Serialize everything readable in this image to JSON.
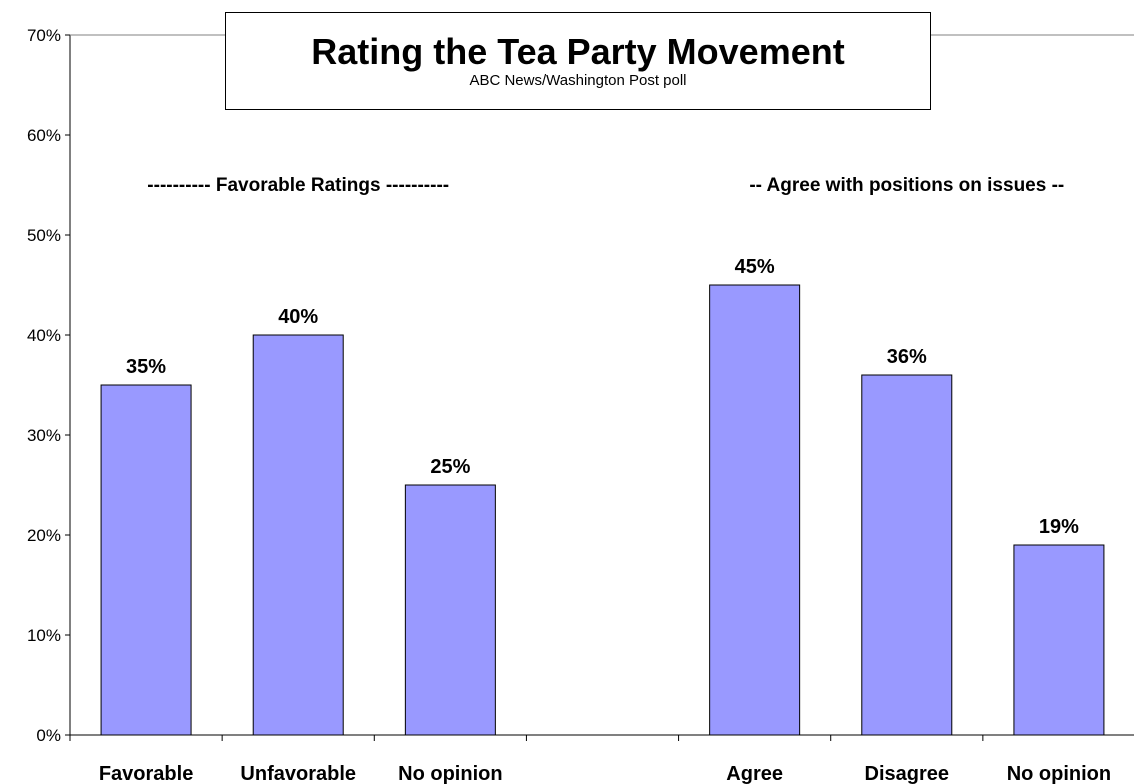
{
  "chart_data": {
    "type": "bar",
    "title": "Rating the Tea Party Movement",
    "subtitle": "ABC News/Washington Post poll",
    "categories": [
      "Favorable",
      "Unfavorable",
      "No opinion",
      "",
      "Agree",
      "Disagree",
      "No opinion"
    ],
    "values": [
      35,
      40,
      25,
      null,
      45,
      36,
      19
    ],
    "data_labels": [
      "35%",
      "40%",
      "25%",
      "",
      "45%",
      "36%",
      "19%"
    ],
    "group_labels": [
      {
        "text": "---------- Favorable Ratings ----------",
        "categories": [
          "Favorable",
          "Unfavorable",
          "No opinion"
        ]
      },
      {
        "text": "-- Agree with positions on issues --",
        "categories": [
          "Agree",
          "Disagree",
          "No opinion"
        ]
      }
    ],
    "ylim": [
      0,
      70
    ],
    "yticks": [
      0,
      10,
      20,
      30,
      40,
      50,
      60,
      70
    ],
    "ytick_labels": [
      "0%",
      "10%",
      "20%",
      "30%",
      "40%",
      "50%",
      "60%",
      "70%"
    ],
    "xlabel": "",
    "ylabel": "",
    "grid": false,
    "legend": "none",
    "bar_color": "#9999FF",
    "bar_edge_color": "#000000"
  }
}
